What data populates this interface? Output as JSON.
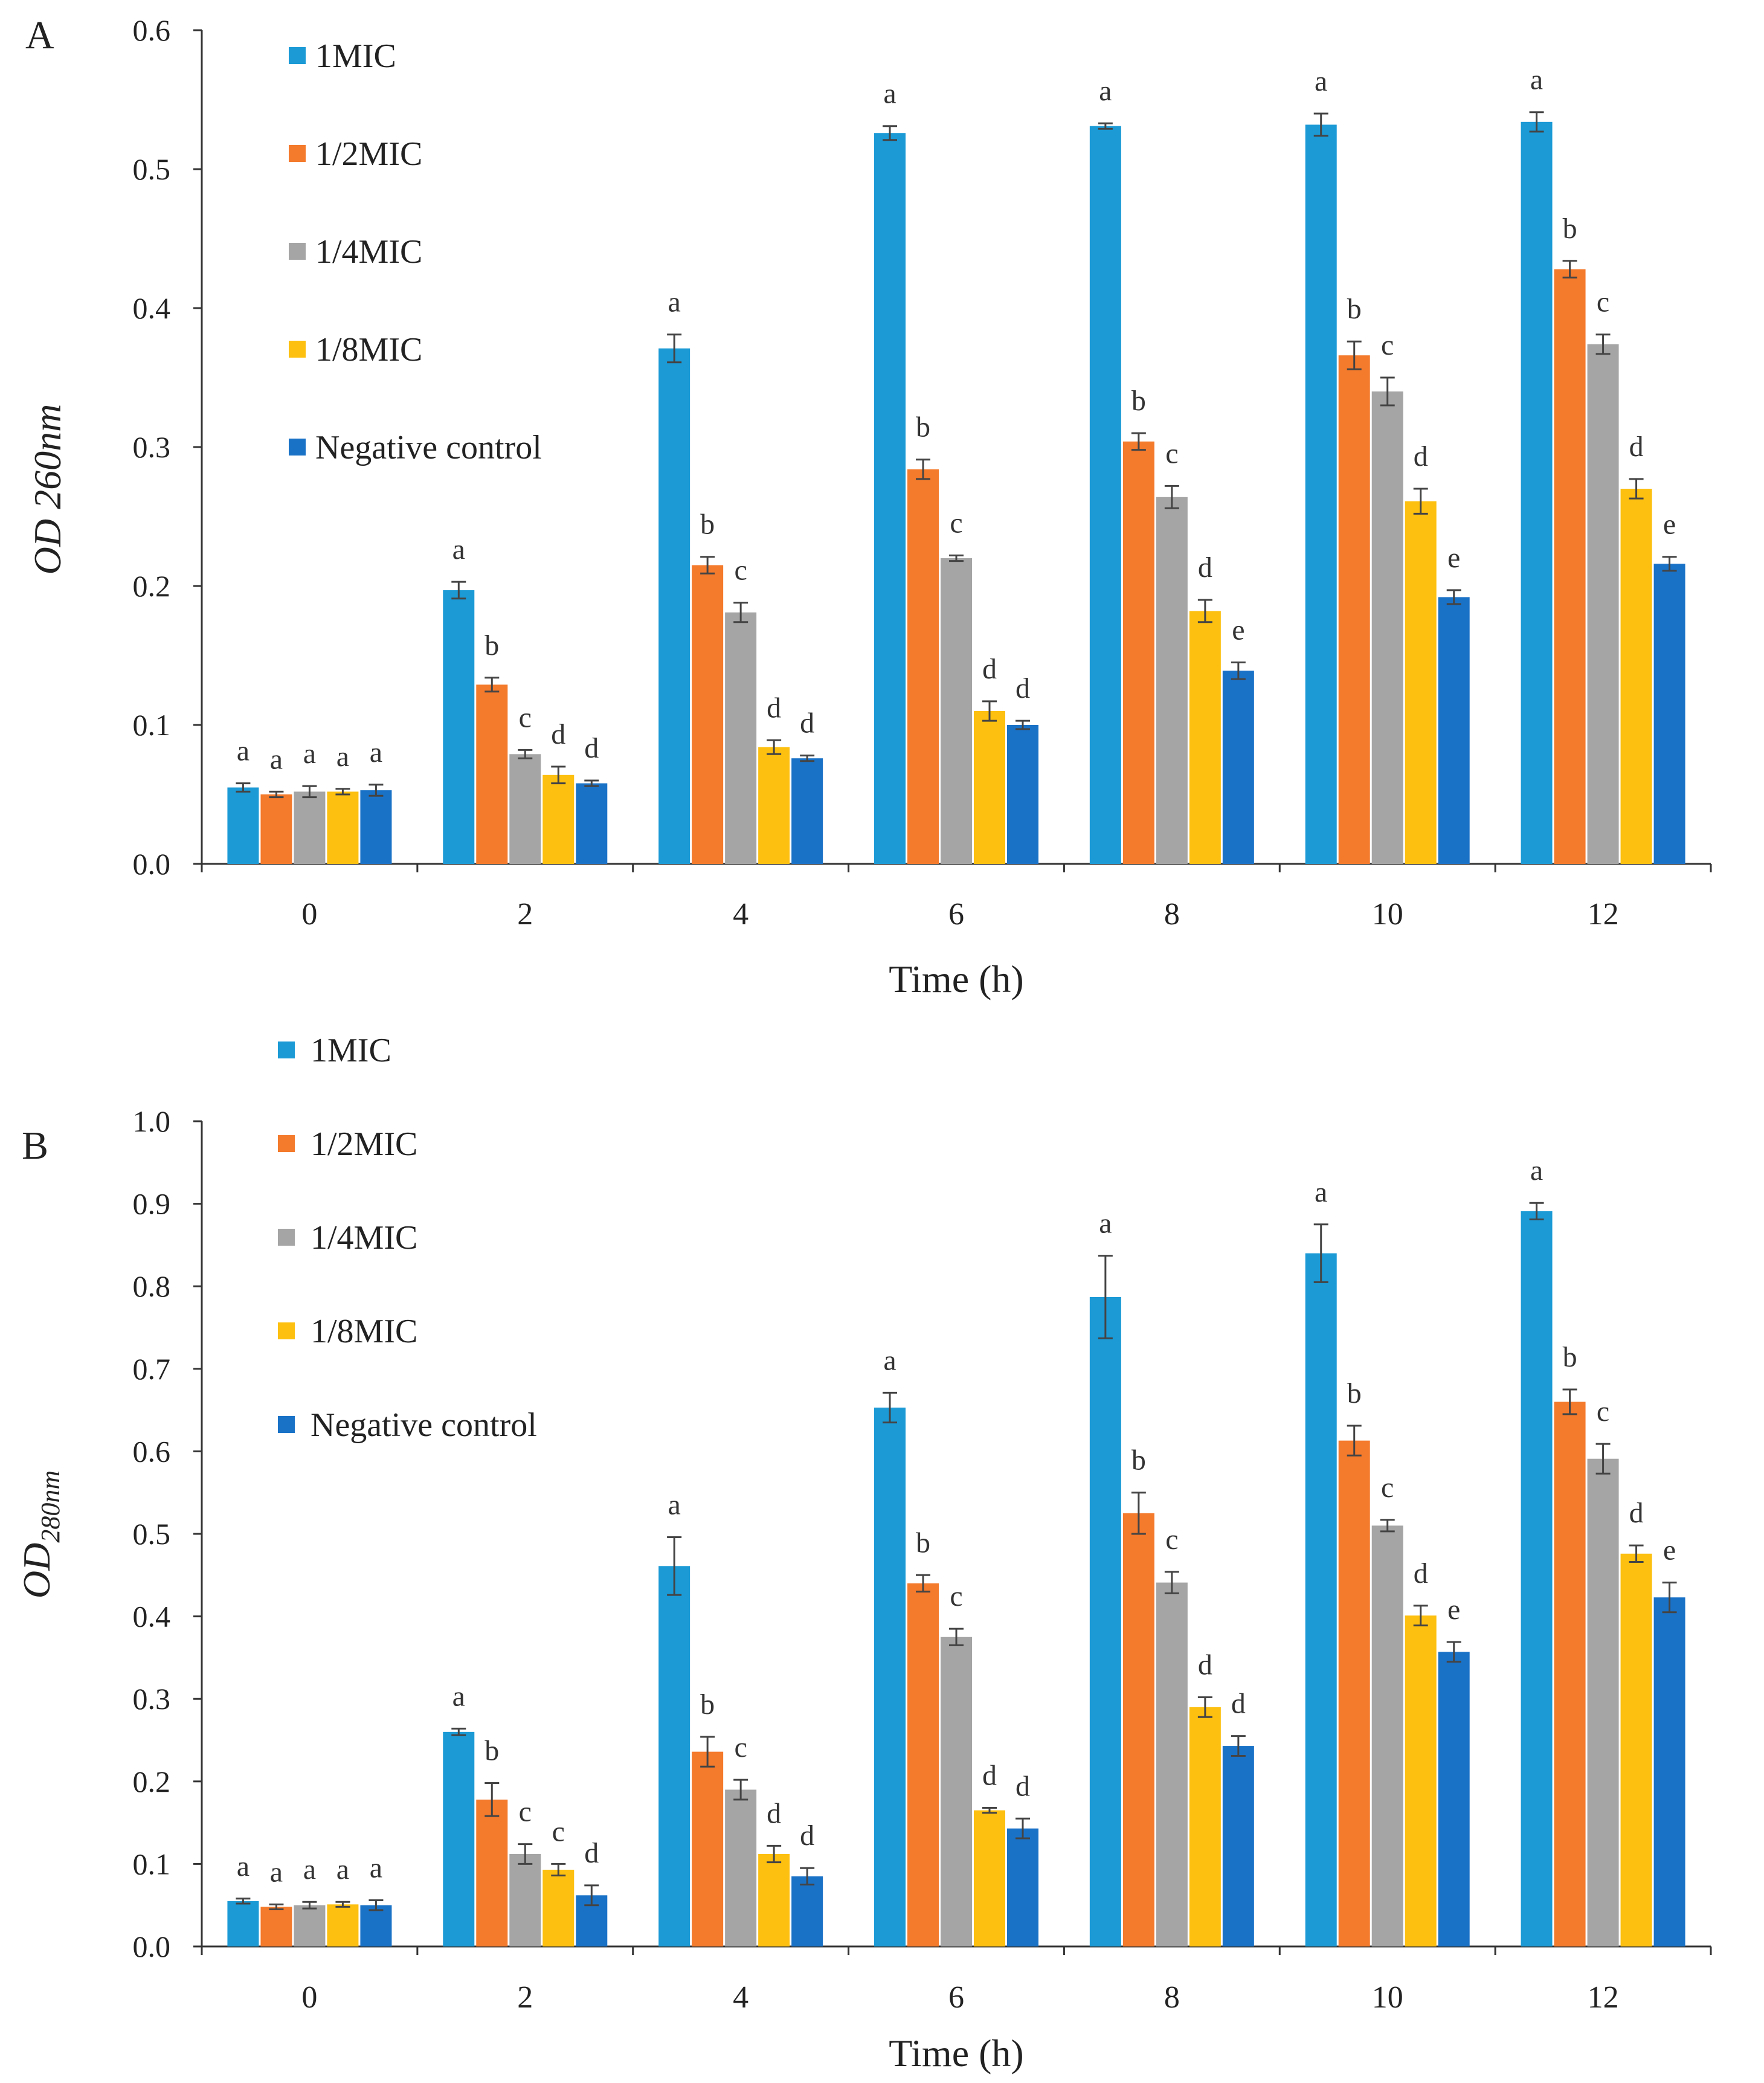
{
  "figure": {
    "colors": {
      "1MIC": "#1b9ad6",
      "1/2MIC": "#f47a2c",
      "1/4MIC": "#a5a5a5",
      "1/8MIC": "#fdc010",
      "Negative control": "#1a72c7"
    }
  },
  "chart_data": [
    {
      "panel": "A",
      "type": "bar",
      "title": "",
      "xlabel": "Time (h)",
      "ylabel": "OD 260nm",
      "ylim": [
        0,
        0.6
      ],
      "yticks": [
        "0.0",
        "0.1",
        "0.2",
        "0.3",
        "0.4",
        "0.5",
        "0.6"
      ],
      "categories": [
        "0",
        "2",
        "4",
        "6",
        "8",
        "10",
        "12"
      ],
      "legend": [
        "1MIC",
        "1/2MIC",
        "1/4MIC",
        "1/8MIC",
        "Negative control"
      ],
      "legend_position": "top-left",
      "series": [
        {
          "name": "1MIC",
          "values": [
            0.055,
            0.197,
            0.371,
            0.526,
            0.531,
            0.532,
            0.534
          ],
          "errors": [
            0.003,
            0.006,
            0.01,
            0.005,
            0.002,
            0.008,
            0.007
          ],
          "letters": [
            "a",
            "a",
            "a",
            "a",
            "a",
            "a",
            "a"
          ]
        },
        {
          "name": "1/2MIC",
          "values": [
            0.05,
            0.129,
            0.215,
            0.284,
            0.304,
            0.366,
            0.428
          ],
          "errors": [
            0.002,
            0.005,
            0.006,
            0.007,
            0.006,
            0.01,
            0.006
          ],
          "letters": [
            "a",
            "b",
            "b",
            "b",
            "b",
            "b",
            "b"
          ]
        },
        {
          "name": "1/4MIC",
          "values": [
            0.052,
            0.079,
            0.181,
            0.22,
            0.264,
            0.34,
            0.374
          ],
          "errors": [
            0.004,
            0.003,
            0.007,
            0.002,
            0.008,
            0.01,
            0.007
          ],
          "letters": [
            "a",
            "c",
            "c",
            "c",
            "c",
            "c",
            "c"
          ]
        },
        {
          "name": "1/8MIC",
          "values": [
            0.052,
            0.064,
            0.084,
            0.11,
            0.182,
            0.261,
            0.27
          ],
          "errors": [
            0.002,
            0.006,
            0.005,
            0.007,
            0.008,
            0.009,
            0.007
          ],
          "letters": [
            "a",
            "d",
            "d",
            "d",
            "d",
            "d",
            "d"
          ]
        },
        {
          "name": "Negative control",
          "values": [
            0.053,
            0.058,
            0.076,
            0.1,
            0.139,
            0.192,
            0.216
          ],
          "errors": [
            0.004,
            0.002,
            0.002,
            0.003,
            0.006,
            0.005,
            0.005
          ],
          "letters": [
            "a",
            "d",
            "d",
            "d",
            "e",
            "e",
            "e"
          ]
        }
      ]
    },
    {
      "panel": "B",
      "type": "bar",
      "title": "",
      "xlabel": "Time (h)",
      "ylabel_main": "OD",
      "ylabel_sub": "280nm",
      "ylim": [
        0,
        1.0
      ],
      "yticks": [
        "0.0",
        "0.1",
        "0.2",
        "0.3",
        "0.4",
        "0.5",
        "0.6",
        "0.7",
        "0.8",
        "0.9",
        "1.0"
      ],
      "categories": [
        "0",
        "2",
        "4",
        "6",
        "8",
        "10",
        "12"
      ],
      "legend": [
        "1MIC",
        "1/2MIC",
        "1/4MIC",
        "1/8MIC",
        "Negative control"
      ],
      "legend_position": "top-left",
      "series": [
        {
          "name": "1MIC",
          "values": [
            0.055,
            0.26,
            0.461,
            0.653,
            0.787,
            0.84,
            0.891
          ],
          "errors": [
            0.003,
            0.004,
            0.035,
            0.018,
            0.05,
            0.035,
            0.01
          ],
          "letters": [
            "a",
            "a",
            "a",
            "a",
            "a",
            "a",
            "a"
          ]
        },
        {
          "name": "1/2MIC",
          "values": [
            0.048,
            0.178,
            0.236,
            0.44,
            0.525,
            0.613,
            0.66
          ],
          "errors": [
            0.003,
            0.02,
            0.018,
            0.01,
            0.025,
            0.018,
            0.015
          ],
          "letters": [
            "a",
            "b",
            "b",
            "b",
            "b",
            "b",
            "b"
          ]
        },
        {
          "name": "1/4MIC",
          "values": [
            0.05,
            0.112,
            0.19,
            0.375,
            0.441,
            0.51,
            0.591
          ],
          "errors": [
            0.004,
            0.012,
            0.012,
            0.01,
            0.013,
            0.007,
            0.018
          ],
          "letters": [
            "a",
            "c",
            "c",
            "c",
            "c",
            "c",
            "c"
          ]
        },
        {
          "name": "1/8MIC",
          "values": [
            0.051,
            0.093,
            0.112,
            0.165,
            0.29,
            0.401,
            0.476
          ],
          "errors": [
            0.003,
            0.007,
            0.01,
            0.003,
            0.012,
            0.012,
            0.01
          ],
          "letters": [
            "a",
            "c",
            "d",
            "d",
            "d",
            "d",
            "d"
          ]
        },
        {
          "name": "Negative control",
          "values": [
            0.05,
            0.062,
            0.085,
            0.143,
            0.243,
            0.357,
            0.423
          ],
          "errors": [
            0.006,
            0.012,
            0.01,
            0.012,
            0.012,
            0.012,
            0.018
          ],
          "letters": [
            "a",
            "d",
            "d",
            "d",
            "d",
            "e",
            "e"
          ]
        }
      ]
    }
  ]
}
